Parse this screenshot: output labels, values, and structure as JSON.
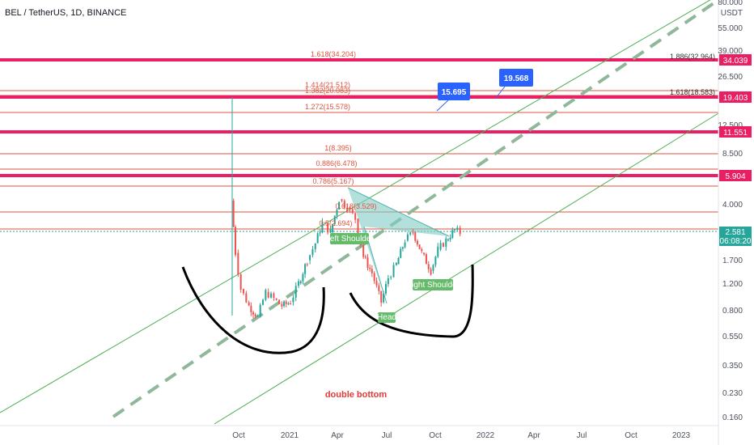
{
  "header": {
    "title": "BEL / TetherUS, 1D, BINANCE"
  },
  "axis": {
    "currency": "USDT",
    "top_partial": "80.000",
    "y_ticks": [
      "55.000",
      "39.000",
      "26.500",
      "12.500",
      "8.500",
      "4.000",
      "1.700",
      "1.200",
      "0.800",
      "0.550",
      "0.350",
      "0.230",
      "0.160"
    ],
    "x_ticks": [
      "Oct",
      "2021",
      "Apr",
      "Jul",
      "Oct",
      "2022",
      "Apr",
      "Jul",
      "Oct",
      "2023"
    ]
  },
  "price_tags": [
    {
      "id": "p34",
      "label": "34.039",
      "color": "#e91e63"
    },
    {
      "id": "p19",
      "label": "19.403",
      "color": "#e91e63"
    },
    {
      "id": "p11",
      "label": "11.551",
      "color": "#e91e63"
    },
    {
      "id": "p5",
      "label": "5.904",
      "color": "#e91e63"
    },
    {
      "id": "pnow",
      "label": "2.581",
      "color": "#26a69a"
    },
    {
      "id": "timer",
      "label": "06:08:20",
      "color": "#26a69a"
    }
  ],
  "fib_labels": [
    {
      "id": "f1618",
      "label": "1.618(34.204)"
    },
    {
      "id": "f1414",
      "label": "1.414(21.512)"
    },
    {
      "id": "f1382",
      "label": "1.382(20.083)"
    },
    {
      "id": "f1272",
      "label": "1.272(15.578)"
    },
    {
      "id": "f1",
      "label": "1(8.395)"
    },
    {
      "id": "f0886",
      "label": "0.886(6.478)"
    },
    {
      "id": "f0786",
      "label": "0.786(5.167)"
    },
    {
      "id": "f0618",
      "label": "0.618(3.529)"
    },
    {
      "id": "f05",
      "label": "0.5(2.694)"
    },
    {
      "id": "r1886",
      "label": "1.886(32.964)"
    },
    {
      "id": "r1618",
      "label": "1.618(18.583)"
    }
  ],
  "callouts": [
    {
      "id": "c15",
      "label": "15.695",
      "color": "#2962ff"
    },
    {
      "id": "c19",
      "label": "19.568",
      "color": "#2962ff"
    }
  ],
  "pattern_labels": {
    "left_shoulder": "Left Shoulder",
    "head": "Head",
    "right_shoulder": "Right Shoulder",
    "note": "double bottom"
  },
  "colors": {
    "up": "#26a69a",
    "down": "#ef5350",
    "level": "#e91e63",
    "fib": "#e0533d",
    "channel": "#4caf50",
    "dash": "#8fb89a",
    "triangle": "#80cbc4",
    "label_green": "#66bb6a",
    "note": "#e53935"
  },
  "chart_data": {
    "type": "candlestick",
    "title": "BEL / TetherUS, 1D, BINANCE",
    "y_scale": "log",
    "x_range": [
      "2020-08",
      "2023-02"
    ],
    "y_range": [
      0.15,
      80
    ],
    "horizontal_levels": [
      34.039,
      19.403,
      11.551,
      5.904
    ],
    "current_price": 2.581,
    "targets": [
      15.695,
      19.568
    ],
    "close_series": [
      {
        "date": "2020-09-18",
        "close": 4.2
      },
      {
        "date": "2020-09-25",
        "close": 1.9
      },
      {
        "date": "2020-10-05",
        "close": 1.1
      },
      {
        "date": "2020-10-20",
        "close": 0.85
      },
      {
        "date": "2020-11-05",
        "close": 0.72
      },
      {
        "date": "2020-11-20",
        "close": 1.05
      },
      {
        "date": "2020-12-05",
        "close": 0.95
      },
      {
        "date": "2020-12-20",
        "close": 0.85
      },
      {
        "date": "2021-01-05",
        "close": 0.9
      },
      {
        "date": "2021-01-20",
        "close": 1.2
      },
      {
        "date": "2021-02-05",
        "close": 1.7
      },
      {
        "date": "2021-02-20",
        "close": 2.2
      },
      {
        "date": "2021-03-05",
        "close": 3.0
      },
      {
        "date": "2021-03-20",
        "close": 2.6
      },
      {
        "date": "2021-04-05",
        "close": 4.3
      },
      {
        "date": "2021-04-20",
        "close": 3.8
      },
      {
        "date": "2021-05-05",
        "close": 3.2
      },
      {
        "date": "2021-05-20",
        "close": 1.8
      },
      {
        "date": "2021-06-05",
        "close": 1.4
      },
      {
        "date": "2021-06-22",
        "close": 0.9
      },
      {
        "date": "2021-07-05",
        "close": 1.3
      },
      {
        "date": "2021-07-20",
        "close": 1.6
      },
      {
        "date": "2021-08-05",
        "close": 2.3
      },
      {
        "date": "2021-08-20",
        "close": 2.6
      },
      {
        "date": "2021-09-05",
        "close": 1.9
      },
      {
        "date": "2021-09-22",
        "close": 1.45
      },
      {
        "date": "2021-10-05",
        "close": 2.0
      },
      {
        "date": "2021-10-20",
        "close": 2.3
      },
      {
        "date": "2021-11-05",
        "close": 2.7
      },
      {
        "date": "2021-11-15",
        "close": 2.581
      }
    ]
  }
}
